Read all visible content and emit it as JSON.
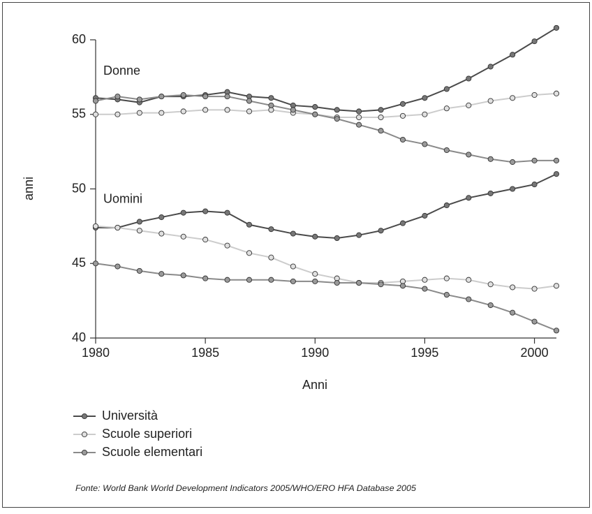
{
  "chart_data": {
    "type": "line",
    "x_label": "Anni",
    "y_label": "anni",
    "x": [
      1980,
      1981,
      1982,
      1983,
      1984,
      1985,
      1986,
      1987,
      1988,
      1989,
      1990,
      1991,
      1992,
      1993,
      1994,
      1995,
      1996,
      1997,
      1998,
      1999,
      2000,
      2001
    ],
    "xlim": [
      1980,
      2001
    ],
    "xticks": [
      1980,
      1985,
      1990,
      1995,
      2000
    ],
    "ylim": [
      40,
      60
    ],
    "yticks": [
      40,
      45,
      50,
      55,
      60
    ],
    "groups": [
      {
        "label": "Donne",
        "series": [
          {
            "name": "Università",
            "color": "#4a4a4a",
            "marker_color": "#777777",
            "values": [
              56.1,
              56.0,
              55.8,
              56.2,
              56.2,
              56.3,
              56.5,
              56.2,
              56.1,
              55.6,
              55.5,
              55.3,
              55.2,
              55.3,
              55.7,
              56.1,
              56.7,
              57.4,
              58.2,
              59.0,
              59.9,
              60.8
            ]
          },
          {
            "name": "Scuole superiori",
            "color": "#cccccc",
            "marker_color": "#e0e0e0",
            "values": [
              55.0,
              55.0,
              55.1,
              55.1,
              55.2,
              55.3,
              55.3,
              55.2,
              55.3,
              55.1,
              55.0,
              54.8,
              54.8,
              54.8,
              54.9,
              55.0,
              55.4,
              55.6,
              55.9,
              56.1,
              56.3,
              56.4
            ]
          },
          {
            "name": "Scuole elementari",
            "color": "#8a8a8a",
            "marker_color": "#9a9a9a",
            "values": [
              55.9,
              56.2,
              56.0,
              56.2,
              56.3,
              56.2,
              56.2,
              55.9,
              55.6,
              55.3,
              55.0,
              54.7,
              54.3,
              53.9,
              53.3,
              53.0,
              52.6,
              52.3,
              52.0,
              51.8,
              51.9,
              51.9
            ]
          }
        ]
      },
      {
        "label": "Uomini",
        "series": [
          {
            "values": [
              47.4,
              47.4,
              47.8,
              48.1,
              48.4,
              48.5,
              48.4,
              47.6,
              47.3,
              47.0,
              46.8,
              46.7,
              46.9,
              47.2,
              47.7,
              48.2,
              48.9,
              49.4,
              49.7,
              50.0,
              50.3,
              51.0
            ]
          },
          {
            "values": [
              47.5,
              47.4,
              47.2,
              47.0,
              46.8,
              46.6,
              46.2,
              45.7,
              45.4,
              44.8,
              44.3,
              44.0,
              43.7,
              43.7,
              43.8,
              43.9,
              44.0,
              43.9,
              43.6,
              43.4,
              43.3,
              43.5
            ]
          },
          {
            "values": [
              45.0,
              44.8,
              44.5,
              44.3,
              44.2,
              44.0,
              43.9,
              43.9,
              43.9,
              43.8,
              43.8,
              43.7,
              43.7,
              43.6,
              43.5,
              43.3,
              42.9,
              42.6,
              42.2,
              41.7,
              41.1,
              40.5
            ]
          }
        ]
      }
    ],
    "source": "Fonte: World Bank World Development Indicators 2005/WHO/ERO HFA Database 2005"
  }
}
